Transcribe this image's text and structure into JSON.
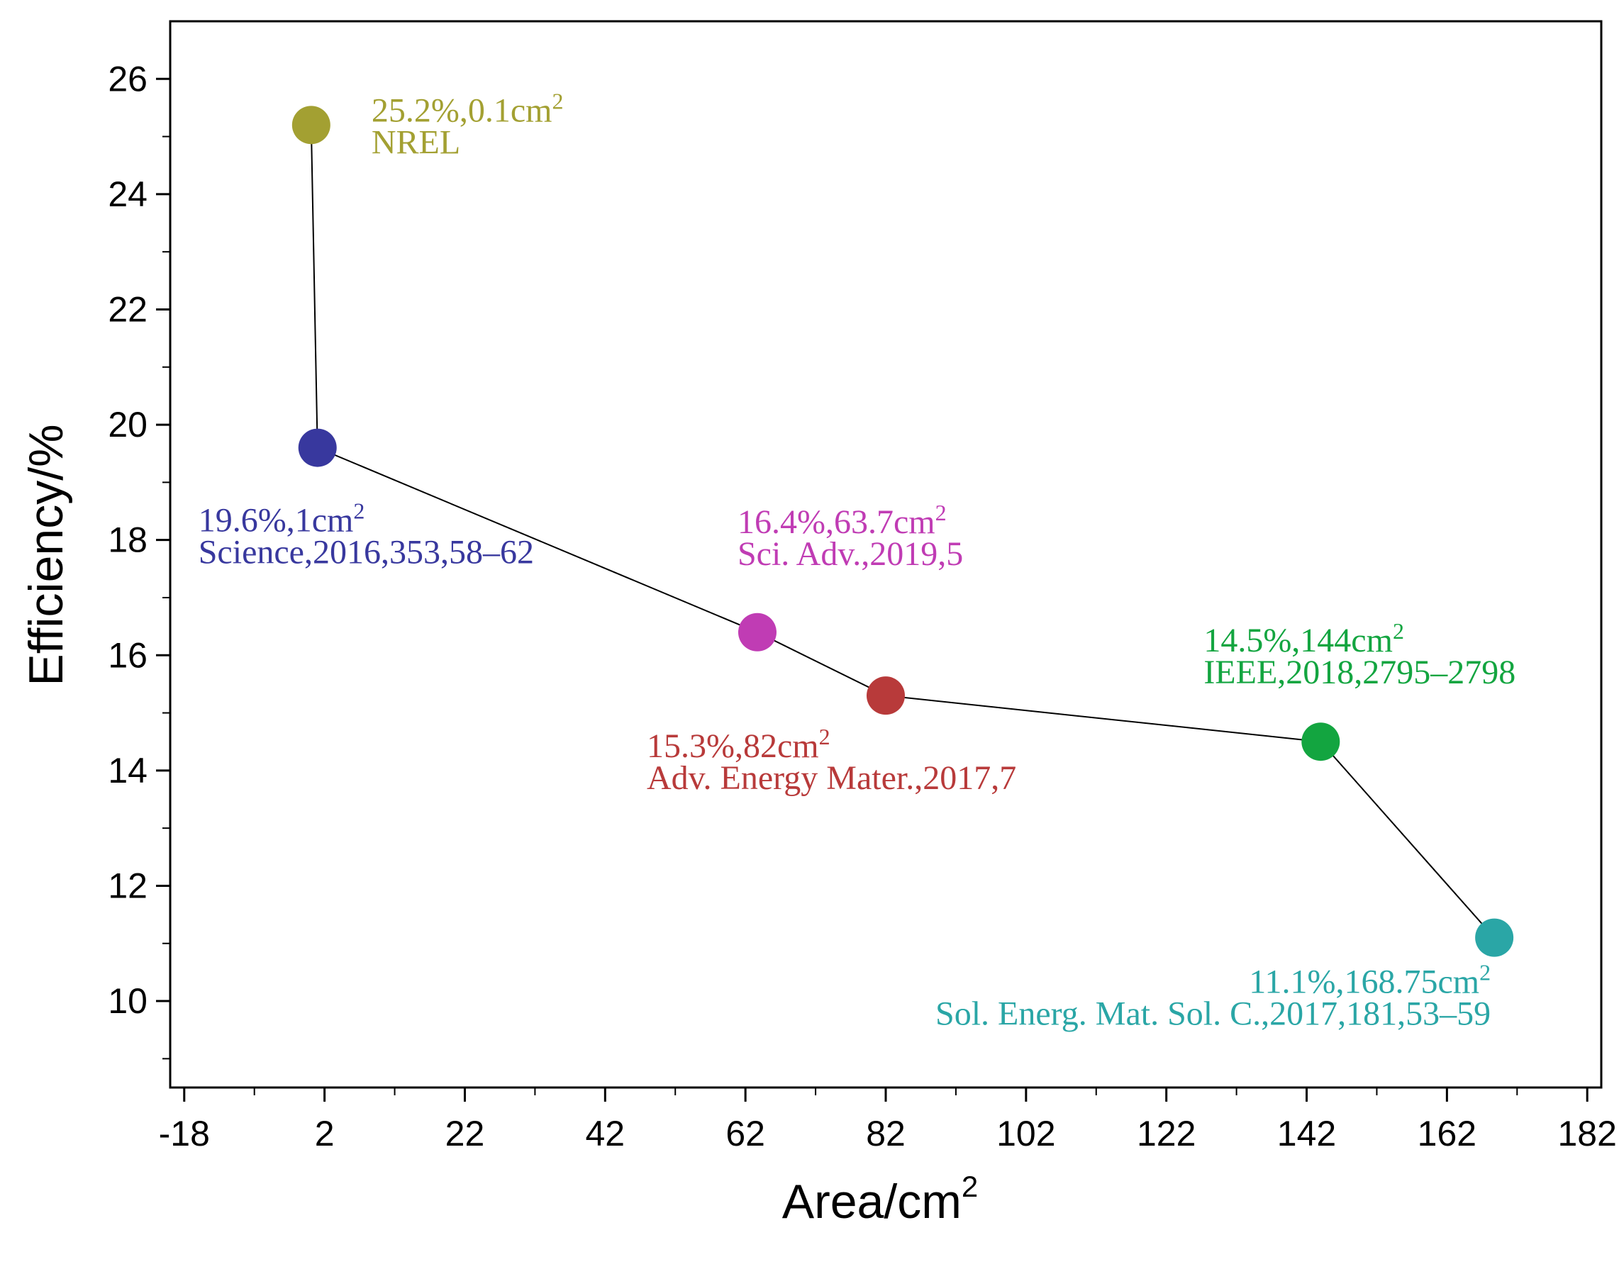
{
  "chart_data": {
    "type": "scatter",
    "connected": true,
    "xlabel": "Area/cm",
    "xlabel_sup": "2",
    "ylabel": "Efficiency/%",
    "xlim": [
      -20,
      184
    ],
    "ylim": [
      8.5,
      27
    ],
    "xticks": [
      -18,
      2,
      22,
      42,
      62,
      82,
      102,
      122,
      142,
      162,
      182
    ],
    "yticks": [
      10,
      12,
      14,
      16,
      18,
      20,
      22,
      24,
      26
    ],
    "grid": false,
    "points": [
      {
        "x": 0.1,
        "y": 25.2,
        "color": "#a3a032",
        "line1": "25.2%,0.1cm",
        "sup": "2",
        "line2": "NREL"
      },
      {
        "x": 1,
        "y": 19.6,
        "color": "#38389e",
        "line1": "19.6%,1cm",
        "sup": "2",
        "line2": "Science,2016,353,58–62"
      },
      {
        "x": 63.7,
        "y": 16.4,
        "color": "#c03cb4",
        "line1": "16.4%,63.7cm",
        "sup": "2",
        "line2": "Sci. Adv.,2019,5"
      },
      {
        "x": 82,
        "y": 15.3,
        "color": "#b83a3a",
        "line1": "15.3%,82cm",
        "sup": "2",
        "line2": "Adv. Energy Mater.,2017,7"
      },
      {
        "x": 144,
        "y": 14.5,
        "color": "#13a540",
        "line1": "14.5%,144cm",
        "sup": "2",
        "line2": "IEEE,2018,2795–2798"
      },
      {
        "x": 168.75,
        "y": 11.1,
        "color": "#2aa6a6",
        "line1": "11.1%,168.75cm",
        "sup": "2",
        "line2": "Sol. Energ. Mat. Sol. C.,2017,181,53–59"
      }
    ]
  }
}
